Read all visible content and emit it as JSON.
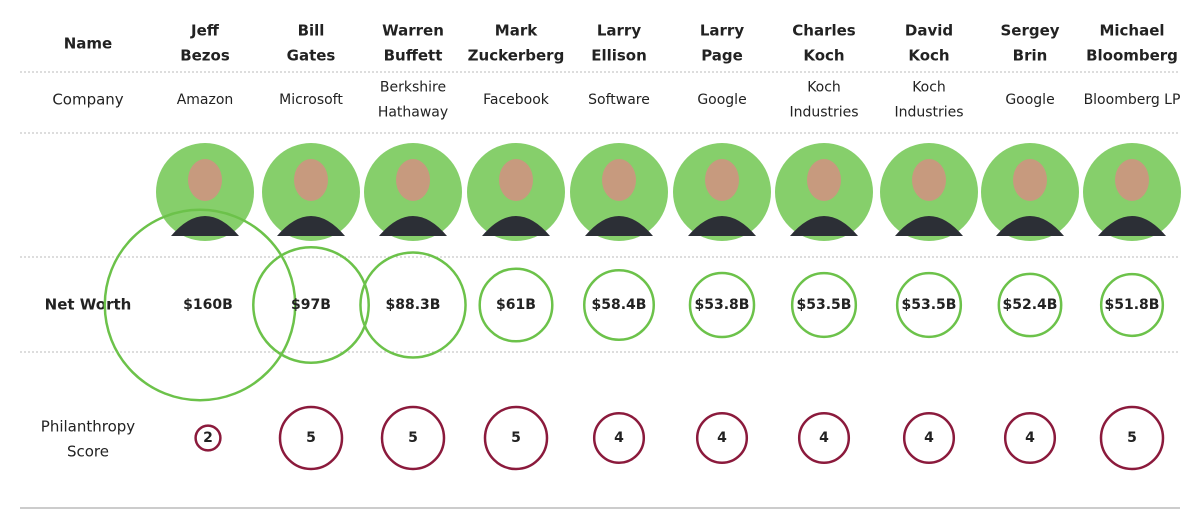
{
  "header": {
    "name": "Name",
    "company": "Company",
    "net_worth": "Net Worth",
    "philanthropy": [
      "Philanthropy",
      "Score"
    ]
  },
  "people": [
    {
      "name": [
        "Jeff",
        "Bezos"
      ],
      "company": [
        "Amazon"
      ],
      "net_worth": 160,
      "net_worth_label": "$160B",
      "philanthropy": 2
    },
    {
      "name": [
        "Bill",
        "Gates"
      ],
      "company": [
        "Microsoft"
      ],
      "net_worth": 97,
      "net_worth_label": "$97B",
      "philanthropy": 5
    },
    {
      "name": [
        "Warren",
        "Buffett"
      ],
      "company": [
        "Berkshire",
        "Hathaway"
      ],
      "net_worth": 88.3,
      "net_worth_label": "$88.3B",
      "philanthropy": 5
    },
    {
      "name": [
        "Mark",
        "Zuckerberg"
      ],
      "company": [
        "Facebook"
      ],
      "net_worth": 61,
      "net_worth_label": "$61B",
      "philanthropy": 5
    },
    {
      "name": [
        "Larry",
        "Ellison"
      ],
      "company": [
        "Software"
      ],
      "net_worth": 58.4,
      "net_worth_label": "$58.4B",
      "philanthropy": 4
    },
    {
      "name": [
        "Larry",
        "Page"
      ],
      "company": [
        "Google"
      ],
      "net_worth": 53.8,
      "net_worth_label": "$53.8B",
      "philanthropy": 4
    },
    {
      "name": [
        "Charles",
        "Koch"
      ],
      "company": [
        "Koch",
        "Industries"
      ],
      "net_worth": 53.5,
      "net_worth_label": "$53.5B",
      "philanthropy": 4
    },
    {
      "name": [
        "David",
        "Koch"
      ],
      "company": [
        "Koch",
        "Industries"
      ],
      "net_worth": 53.5,
      "net_worth_label": "$53.5B",
      "philanthropy": 4
    },
    {
      "name": [
        "Sergey",
        "Brin"
      ],
      "company": [
        "Google"
      ],
      "net_worth": 52.4,
      "net_worth_label": "$52.4B",
      "philanthropy": 4
    },
    {
      "name": [
        "Michael",
        "Bloomberg"
      ],
      "company": [
        "Bloomberg LP"
      ],
      "net_worth": 51.8,
      "net_worth_label": "$51.8B",
      "philanthropy": 5
    }
  ]
}
